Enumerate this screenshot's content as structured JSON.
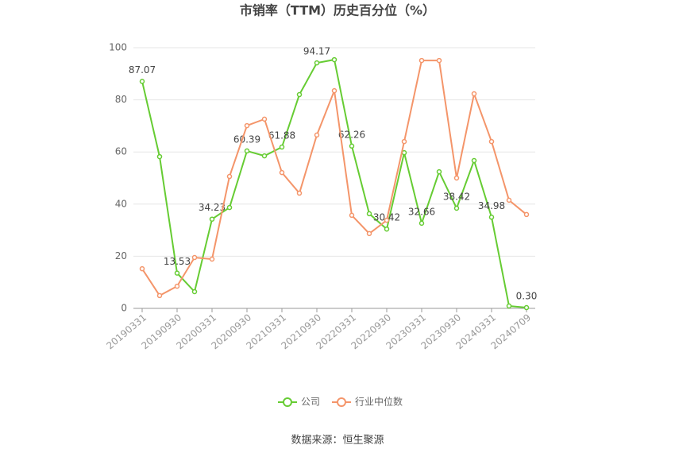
{
  "chart_data": {
    "type": "line",
    "title": "市销率（TTM）历史百分位（%）",
    "categories": [
      "20190331",
      null,
      "20190930",
      null,
      "20200331",
      null,
      "20200930",
      null,
      "20210331",
      null,
      "20210930",
      null,
      "20220331",
      null,
      "20220930",
      null,
      "20230331",
      null,
      "20230930",
      null,
      "20240331",
      null,
      "20240709"
    ],
    "series": [
      {
        "name": "公司",
        "color": "#66cc33",
        "values": [
          87.07,
          58.2,
          13.53,
          6.4,
          34.23,
          38.7,
          60.39,
          58.5,
          61.88,
          82,
          94.17,
          95.4,
          62.26,
          36.3,
          30.42,
          59.7,
          32.66,
          52.4,
          38.42,
          56.7,
          34.98,
          0.9,
          0.3
        ],
        "value_labels": [
          "87.07",
          null,
          "13.53",
          null,
          "34.23",
          null,
          "60.39",
          null,
          "61.88",
          null,
          "94.17",
          null,
          "62.26",
          null,
          "30.42",
          null,
          "32.66",
          null,
          "38.42",
          null,
          "34.98",
          null,
          "0.30"
        ]
      },
      {
        "name": "行业中位数",
        "color": "#f4956a",
        "values": [
          15.2,
          4.9,
          8.5,
          19.5,
          18.9,
          50.6,
          70.1,
          72.6,
          52.1,
          44.2,
          66.5,
          83.5,
          35.7,
          28.7,
          33.8,
          64,
          95.1,
          95.1,
          50,
          82.3,
          64,
          41.5,
          36
        ]
      }
    ],
    "ylim": [
      0,
      100
    ],
    "yticks": [
      0,
      20,
      40,
      60,
      80,
      100
    ],
    "grid": true,
    "source": "数据来源：恒生聚源"
  }
}
